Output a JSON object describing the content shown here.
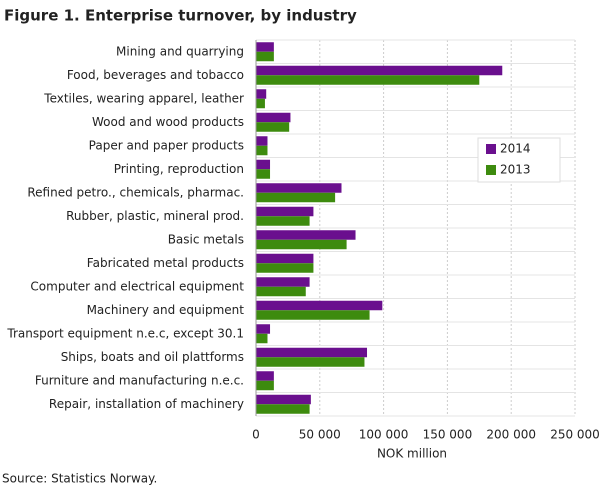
{
  "chart_data": {
    "type": "barh",
    "title": "Figure 1. Enterprise turnover, by industry",
    "xlabel": "NOK million",
    "source": "Source: Statistics Norway.",
    "categories": [
      "Mining and quarrying",
      "Food, beverages and tobacco",
      "Textiles, wearing apparel, leather",
      "Wood and wood products",
      "Paper and paper products",
      "Printing, reproduction",
      "Refined petro., chemicals, pharmac.",
      "Rubber, plastic, mineral prod.",
      "Basic metals",
      "Fabricated metal products",
      "Computer and electrical equipment",
      "Machinery and equipment",
      "Transport equipment n.e.c, except 30.1",
      "Ships, boats and oil plattforms",
      "Furniture and manufacturing n.e.c.",
      "Repair, installation of machinery"
    ],
    "series": [
      {
        "name": "2014",
        "color": "#6a0f8e",
        "values": [
          14000,
          193000,
          8000,
          27000,
          9000,
          11000,
          67000,
          45000,
          78000,
          45000,
          42000,
          99000,
          11000,
          87000,
          14000,
          43000
        ]
      },
      {
        "name": "2013",
        "color": "#3d8b0e",
        "values": [
          14000,
          175000,
          7000,
          26000,
          9000,
          11000,
          62000,
          42000,
          71000,
          45000,
          39000,
          89000,
          9000,
          85000,
          14000,
          42000
        ]
      }
    ],
    "xlim": [
      0,
      250000
    ],
    "xticks": [
      0,
      {
        "value": 50000,
        "label": "50 000"
      },
      {
        "value": 100000,
        "label": "100 000"
      },
      {
        "value": 150000,
        "label": "150 000"
      },
      {
        "value": 200000,
        "label": "200 000"
      },
      {
        "value": 250000,
        "label": "250 000"
      }
    ],
    "grid": true,
    "legend": "center right"
  }
}
